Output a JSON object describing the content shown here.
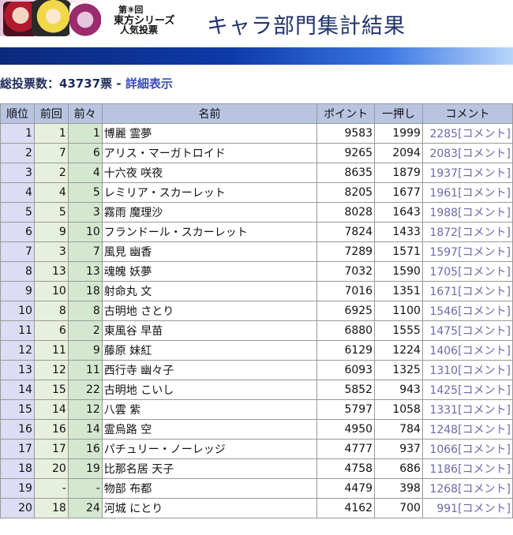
{
  "header": {
    "logo_line1": "第⑨回",
    "logo_line2": "東方シリーズ",
    "logo_line3": "人気投票",
    "title": "キャラ部門集計結果"
  },
  "summary": {
    "total_label": "総投票数：43737票",
    "separator": " - ",
    "detail_link": "詳細表示"
  },
  "table": {
    "headers": {
      "rank": "順位",
      "prev": "前回",
      "prev2": "前々",
      "name": "名前",
      "points": "ポイント",
      "push": "一押し",
      "comment": "コメント"
    },
    "rows": [
      {
        "rank": "1",
        "prev": "1",
        "prev2": "1",
        "name": "博麗 霊夢",
        "points": "9583",
        "push": "1999",
        "comment": "2285[コメント]"
      },
      {
        "rank": "2",
        "prev": "7",
        "prev2": "6",
        "name": "アリス・マーガトロイド",
        "points": "9265",
        "push": "2094",
        "comment": "2083[コメント]"
      },
      {
        "rank": "3",
        "prev": "2",
        "prev2": "4",
        "name": "十六夜 咲夜",
        "points": "8635",
        "push": "1879",
        "comment": "1937[コメント]"
      },
      {
        "rank": "4",
        "prev": "4",
        "prev2": "5",
        "name": "レミリア・スカーレット",
        "points": "8205",
        "push": "1677",
        "comment": "1961[コメント]"
      },
      {
        "rank": "5",
        "prev": "5",
        "prev2": "3",
        "name": "霧雨 魔理沙",
        "points": "8028",
        "push": "1643",
        "comment": "1988[コメント]"
      },
      {
        "rank": "6",
        "prev": "9",
        "prev2": "10",
        "name": "フランドール・スカーレット",
        "points": "7824",
        "push": "1433",
        "comment": "1872[コメント]"
      },
      {
        "rank": "7",
        "prev": "3",
        "prev2": "7",
        "name": "風見 幽香",
        "points": "7289",
        "push": "1571",
        "comment": "1597[コメント]"
      },
      {
        "rank": "8",
        "prev": "13",
        "prev2": "13",
        "name": "魂魄 妖夢",
        "points": "7032",
        "push": "1590",
        "comment": "1705[コメント]"
      },
      {
        "rank": "9",
        "prev": "10",
        "prev2": "18",
        "name": "射命丸 文",
        "points": "7016",
        "push": "1351",
        "comment": "1671[コメント]"
      },
      {
        "rank": "10",
        "prev": "8",
        "prev2": "8",
        "name": "古明地 さとり",
        "points": "6925",
        "push": "1100",
        "comment": "1546[コメント]"
      },
      {
        "rank": "11",
        "prev": "6",
        "prev2": "2",
        "name": "東風谷 早苗",
        "points": "6880",
        "push": "1555",
        "comment": "1475[コメント]"
      },
      {
        "rank": "12",
        "prev": "11",
        "prev2": "9",
        "name": "藤原 妹紅",
        "points": "6129",
        "push": "1224",
        "comment": "1406[コメント]"
      },
      {
        "rank": "13",
        "prev": "12",
        "prev2": "11",
        "name": "西行寺 幽々子",
        "points": "6093",
        "push": "1325",
        "comment": "1310[コメント]"
      },
      {
        "rank": "14",
        "prev": "15",
        "prev2": "22",
        "name": "古明地 こいし",
        "points": "5852",
        "push": "943",
        "comment": "1425[コメント]"
      },
      {
        "rank": "15",
        "prev": "14",
        "prev2": "12",
        "name": "八雲 紫",
        "points": "5797",
        "push": "1058",
        "comment": "1331[コメント]"
      },
      {
        "rank": "16",
        "prev": "16",
        "prev2": "14",
        "name": "霊烏路 空",
        "points": "4950",
        "push": "784",
        "comment": "1248[コメント]"
      },
      {
        "rank": "17",
        "prev": "17",
        "prev2": "16",
        "name": "パチュリー・ノーレッジ",
        "points": "4777",
        "push": "937",
        "comment": "1066[コメント]"
      },
      {
        "rank": "18",
        "prev": "20",
        "prev2": "19",
        "name": "比那名居 天子",
        "points": "4758",
        "push": "686",
        "comment": "1186[コメント]"
      },
      {
        "rank": "19",
        "prev": "-",
        "prev2": "-",
        "name": "物部 布都",
        "points": "4479",
        "push": "398",
        "comment": "1268[コメント]"
      },
      {
        "rank": "20",
        "prev": "18",
        "prev2": "24",
        "name": "河城 にとり",
        "points": "4162",
        "push": "700",
        "comment": "991[コメント]"
      }
    ]
  }
}
